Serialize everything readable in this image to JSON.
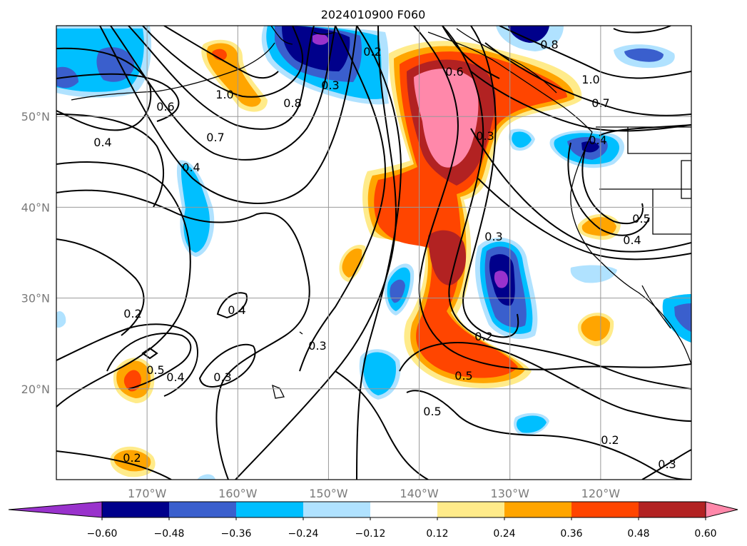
{
  "title": "2024010900 F060",
  "map": {
    "lon_ticks": [
      "170°W",
      "160°W",
      "150°W",
      "140°W",
      "130°W",
      "120°W"
    ],
    "lat_ticks": [
      "50°N",
      "40°N",
      "30°N",
      "20°N"
    ],
    "grid": true,
    "contour_labels": [
      "1.0",
      "0.6",
      "0.8",
      "0.3",
      "0.2",
      "0.6",
      "0.8",
      "1.0",
      "0.7",
      "0.4",
      "0.7",
      "0.4",
      "0.4",
      "0.5",
      "0.4",
      "0.3",
      "0.5",
      "0.3",
      "0.3",
      "0.2",
      "0.2",
      "0.4",
      "0.5",
      "0.2",
      "0.2",
      "0.3",
      "0.5",
      "0.4",
      "0.3"
    ]
  },
  "colorbar": {
    "tick_labels": [
      "-0.60",
      "-0.48",
      "-0.36",
      "-0.24",
      "-0.12",
      "0.12",
      "0.24",
      "0.36",
      "0.48",
      "0.60"
    ],
    "colors": [
      "#9932cc",
      "#00008b",
      "#3a5fcd",
      "#00bfff",
      "#b0e2ff",
      "#ffffff",
      "#ffeb8a",
      "#ffa500",
      "#ff4500",
      "#b22222",
      "#ff88aa"
    ]
  },
  "chart_data": {
    "type": "heatmap",
    "title": "2024010900 F060",
    "xlabel": "",
    "ylabel": "",
    "xlim": [
      -180,
      -110
    ],
    "ylim": [
      10,
      60
    ],
    "levels": [
      -0.6,
      -0.48,
      -0.36,
      -0.24,
      -0.12,
      0.12,
      0.24,
      0.36,
      0.48,
      0.6
    ]
  }
}
